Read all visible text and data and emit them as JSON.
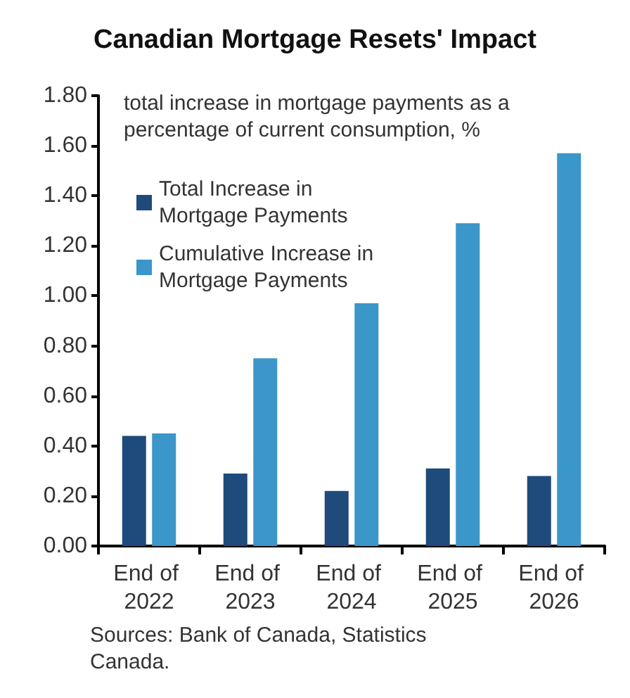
{
  "chart_data": {
    "type": "bar",
    "title": "Canadian Mortgage Resets' Impact",
    "subtitle": "total increase in mortgage payments as a percentage of current consumption, %",
    "categories": [
      "End of 2022",
      "End of 2023",
      "End of 2024",
      "End of 2025",
      "End of 2026"
    ],
    "series": [
      {
        "name": "Total Increase in Mortgage Payments",
        "color": "#1f4a7c",
        "values": [
          0.44,
          0.29,
          0.22,
          0.31,
          0.28
        ]
      },
      {
        "name": "Cumulative Increase in Mortgage Payments",
        "color": "#3b96ca",
        "values": [
          0.45,
          0.75,
          0.97,
          1.29,
          1.57
        ]
      }
    ],
    "ylim": [
      0,
      1.8
    ],
    "yticks": [
      {
        "value": 0,
        "label": "0.00"
      },
      {
        "value": 0.2,
        "label": "0.20"
      },
      {
        "value": 0.4,
        "label": "0.40"
      },
      {
        "value": 0.6,
        "label": "0.60"
      },
      {
        "value": 0.8,
        "label": "0.80"
      },
      {
        "value": 1.0,
        "label": "1.00"
      },
      {
        "value": 1.2,
        "label": "1.20"
      },
      {
        "value": 1.4,
        "label": "1.40"
      },
      {
        "value": 1.6,
        "label": "1.60"
      },
      {
        "value": 1.8,
        "label": "1.80"
      }
    ],
    "grid": false,
    "legend": "top left",
    "annotations": [
      "Sources: Bank of Canada, Statistics Canada."
    ]
  }
}
